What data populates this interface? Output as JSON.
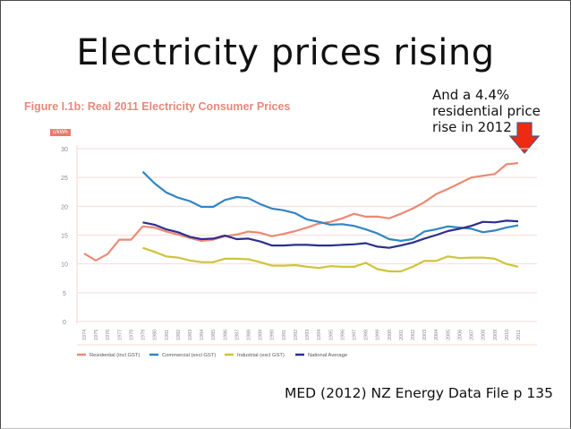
{
  "slide": {
    "title": "Electricity prices rising",
    "callout_lines": [
      "And a 4.4%",
      "residential price",
      "rise in 2012"
    ],
    "caption": "MED (2012) NZ Energy Data File p 135",
    "arrow_color": "#ee2b12"
  },
  "chart_data": {
    "type": "line",
    "title": "Figure I.1b: Real 2011 Electricity Consumer Prices",
    "ylabel": "c/kWh",
    "xlabel": "",
    "ylim": [
      0,
      30
    ],
    "yticks": [
      0,
      5,
      10,
      15,
      20,
      25,
      30
    ],
    "grid": true,
    "legend_position": "bottom",
    "x": [
      1974,
      1975,
      1976,
      1977,
      1978,
      1979,
      1980,
      1981,
      1982,
      1983,
      1984,
      1985,
      1986,
      1987,
      1988,
      1989,
      1990,
      1991,
      1992,
      1993,
      1994,
      1995,
      1996,
      1997,
      1998,
      1999,
      2000,
      2001,
      2002,
      2003,
      2004,
      2005,
      2006,
      2007,
      2008,
      2009,
      2010,
      2011
    ],
    "series": [
      {
        "name": "Residential (incl GST)",
        "color": "#ea8a74",
        "values": [
          11.8,
          10.6,
          11.7,
          14.2,
          14.2,
          16.5,
          16.3,
          15.6,
          15.1,
          14.5,
          14.0,
          14.2,
          14.8,
          15.1,
          15.6,
          15.4,
          14.8,
          15.2,
          15.7,
          16.3,
          17.0,
          17.3,
          17.9,
          18.7,
          18.2,
          18.2,
          17.9,
          18.7,
          19.6,
          20.7,
          22.1,
          23.0,
          24.0,
          25.0,
          25.3,
          25.6,
          27.3,
          27.5
        ]
      },
      {
        "name": "Commercial (excl GST)",
        "color": "#2f86c4",
        "values": [
          null,
          null,
          null,
          null,
          null,
          26.0,
          24.0,
          22.4,
          21.5,
          20.9,
          19.9,
          19.9,
          21.1,
          21.6,
          21.4,
          20.4,
          19.6,
          19.3,
          18.8,
          17.7,
          17.3,
          16.8,
          16.9,
          16.6,
          16.0,
          15.3,
          14.3,
          14.0,
          14.3,
          15.6,
          16.0,
          16.5,
          16.3,
          16.1,
          15.5,
          15.8,
          16.3,
          16.7
        ]
      },
      {
        "name": "Industrial (excl GST)",
        "color": "#cfc43c",
        "values": [
          null,
          null,
          null,
          null,
          null,
          12.8,
          12.1,
          11.3,
          11.1,
          10.6,
          10.3,
          10.3,
          10.9,
          10.9,
          10.8,
          10.3,
          9.7,
          9.7,
          9.8,
          9.5,
          9.3,
          9.6,
          9.5,
          9.5,
          10.2,
          9.1,
          8.7,
          8.7,
          9.5,
          10.5,
          10.5,
          11.3,
          11.0,
          11.1,
          11.1,
          10.9,
          10.0,
          9.5
        ]
      },
      {
        "name": "National Average",
        "color": "#2c2f8c",
        "values": [
          null,
          null,
          null,
          null,
          null,
          17.2,
          16.8,
          16.0,
          15.5,
          14.7,
          14.3,
          14.4,
          14.9,
          14.3,
          14.4,
          13.9,
          13.2,
          13.2,
          13.3,
          13.3,
          13.2,
          13.2,
          13.3,
          13.4,
          13.6,
          13.0,
          12.8,
          13.2,
          13.7,
          14.4,
          15.0,
          15.7,
          16.1,
          16.6,
          17.3,
          17.2,
          17.5,
          17.4
        ]
      }
    ]
  }
}
